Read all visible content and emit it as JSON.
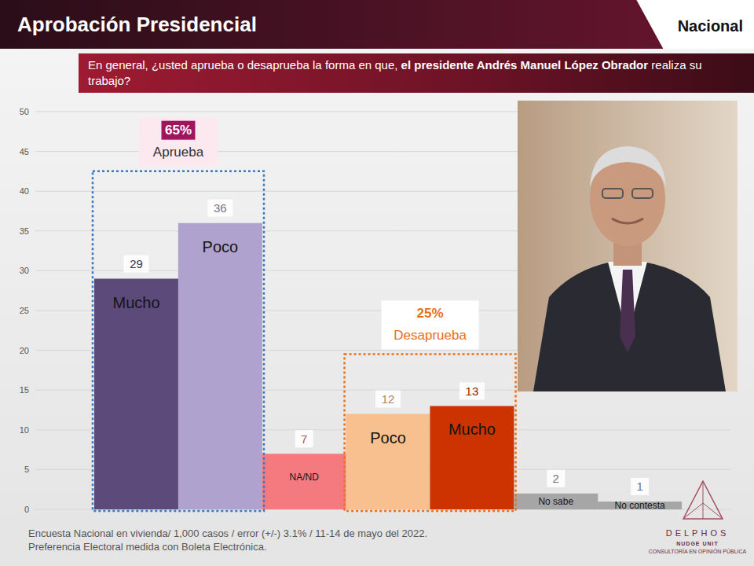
{
  "header": {
    "title": "Aprobación Presidencial",
    "region": "Nacional",
    "question": {
      "before": "En general, ¿usted aprueba o desaprueba la forma en que, ",
      "bold": "el presidente Andrés Manuel López Obrador",
      "after": " realiza su trabajo?"
    }
  },
  "footer": {
    "notes": [
      "Encuesta Nacional en vivienda/ 1,000 casos / error (+/-) 3.1% / 11-14 de mayo del 2022.",
      "Preferencia Electoral medida con Boleta Electrónica."
    ],
    "logo": {
      "name": "DELPHOS",
      "unit": "NUDGE UNIT",
      "tagline": "CONSULTORÍA EN OPINIÓN PÚBLICA"
    }
  },
  "chart_data": {
    "type": "bar",
    "categories": [
      "Mucho",
      "Poco",
      "NA/ND",
      "Poco",
      "Mucho",
      "No sabe",
      "No contesta"
    ],
    "values": [
      29,
      36,
      7,
      12,
      13,
      2,
      1
    ],
    "colors": [
      "#5b4a7a",
      "#b0a2cf",
      "#f47a80",
      "#f9c08f",
      "#cc3300",
      "#a6a6a6",
      "#a6a6a6"
    ],
    "ylim": [
      0,
      50
    ],
    "yticks": [
      0,
      5,
      10,
      15,
      20,
      25,
      30,
      35,
      40,
      45,
      50
    ],
    "grid": true,
    "data_labels": true,
    "tick_labels": "y",
    "groups": [
      {
        "label": "Aprueba",
        "value": 65,
        "value_label": "65%",
        "members": [
          0,
          1
        ],
        "color": "#3a78c2"
      },
      {
        "label": "Desaprueba",
        "value": 25,
        "value_label": "25%",
        "members": [
          3,
          4
        ],
        "color": "#e8701a"
      }
    ]
  }
}
